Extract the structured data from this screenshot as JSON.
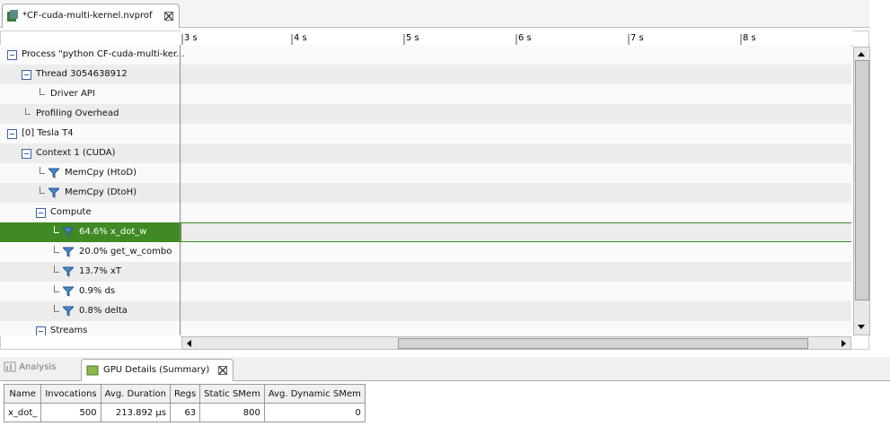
{
  "editor_tab": {
    "title": "*CF-cuda-multi-kernel.nvprof"
  },
  "timeline": {
    "ruler_labels": [
      "3 s",
      "4 s",
      "5 s",
      "6 s",
      "7 s",
      "8 s"
    ]
  },
  "tree": {
    "rows": [
      {
        "label": "Process \"python CF-cuda-multi-ker..."
      },
      {
        "label": "Thread 3054638912"
      },
      {
        "label": "Driver API"
      },
      {
        "label": "Profiling Overhead"
      },
      {
        "label": "[0] Tesla T4"
      },
      {
        "label": "Context 1 (CUDA)"
      },
      {
        "label": "MemCpy (HtoD)"
      },
      {
        "label": "MemCpy (DtoH)"
      },
      {
        "label": "Compute"
      },
      {
        "label": "64.6% x_dot_w"
      },
      {
        "label": "20.0% get_w_combo"
      },
      {
        "label": "13.7% xT"
      },
      {
        "label": "0.9% ds"
      },
      {
        "label": "0.8% delta"
      },
      {
        "label": "Streams"
      }
    ]
  },
  "bottom_tabs": [
    "Analysis",
    "GPU Details (Summary)"
  ],
  "table": {
    "columns": [
      "Name",
      "Invocations",
      "Avg. Duration",
      "Regs",
      "Static SMem",
      "Avg. Dynamic SMem"
    ],
    "rows": [
      [
        "x_dot_",
        "500",
        "213.892 μs",
        "63",
        "800",
        "0"
      ]
    ]
  }
}
